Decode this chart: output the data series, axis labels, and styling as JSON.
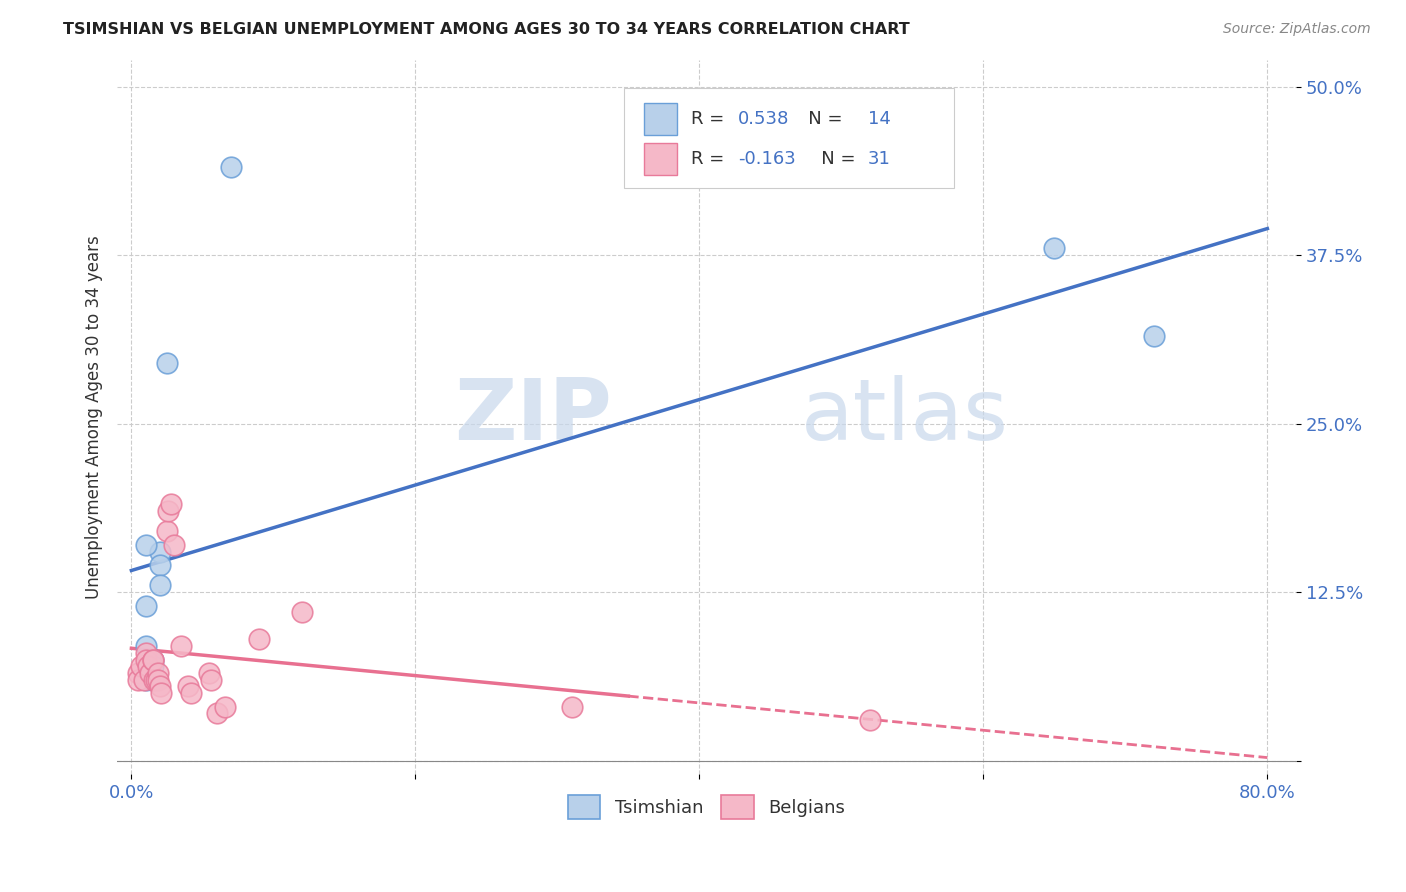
{
  "title": "TSIMSHIAN VS BELGIAN UNEMPLOYMENT AMONG AGES 30 TO 34 YEARS CORRELATION CHART",
  "source": "Source: ZipAtlas.com",
  "ylabel": "Unemployment Among Ages 30 to 34 years",
  "xlim": [
    -0.01,
    0.82
  ],
  "ylim": [
    -0.01,
    0.52
  ],
  "xticks": [
    0.0,
    0.2,
    0.4,
    0.6,
    0.8
  ],
  "xticklabels": [
    "0.0%",
    "",
    "",
    "",
    "80.0%"
  ],
  "yticks": [
    0.0,
    0.125,
    0.25,
    0.375,
    0.5
  ],
  "yticklabels": [
    "",
    "12.5%",
    "25.0%",
    "37.5%",
    "50.0%"
  ],
  "tsimshian_color": "#b8d0ea",
  "belgian_color": "#f5b8c8",
  "tsimshian_edge_color": "#6a9fd8",
  "belgian_edge_color": "#e87a9a",
  "tsimshian_line_color": "#4472c4",
  "belgian_line_color": "#e87090",
  "r_tsimshian": "0.538",
  "n_tsimshian": "14",
  "r_belgian": "-0.163",
  "n_belgian": "31",
  "legend_tsimshian": "Tsimshian",
  "legend_belgian": "Belgians",
  "watermark_part1": "ZIP",
  "watermark_part2": "atlas",
  "tsimshian_x": [
    0.02,
    0.02,
    0.02,
    0.015,
    0.015,
    0.015,
    0.01,
    0.01,
    0.01,
    0.01,
    0.025,
    0.07,
    0.65,
    0.72
  ],
  "tsimshian_y": [
    0.155,
    0.145,
    0.13,
    0.075,
    0.07,
    0.06,
    0.06,
    0.085,
    0.115,
    0.16,
    0.295,
    0.44,
    0.38,
    0.315
  ],
  "belgian_x": [
    0.005,
    0.005,
    0.007,
    0.009,
    0.01,
    0.01,
    0.012,
    0.013,
    0.015,
    0.015,
    0.016,
    0.017,
    0.019,
    0.019,
    0.02,
    0.021,
    0.025,
    0.026,
    0.028,
    0.03,
    0.035,
    0.04,
    0.042,
    0.055,
    0.056,
    0.06,
    0.066,
    0.09,
    0.12,
    0.31,
    0.52
  ],
  "belgian_y": [
    0.065,
    0.06,
    0.07,
    0.06,
    0.08,
    0.075,
    0.07,
    0.065,
    0.075,
    0.075,
    0.06,
    0.06,
    0.065,
    0.06,
    0.055,
    0.05,
    0.17,
    0.185,
    0.19,
    0.16,
    0.085,
    0.055,
    0.05,
    0.065,
    0.06,
    0.035,
    0.04,
    0.09,
    0.11,
    0.04,
    0.03
  ],
  "background_color": "#ffffff",
  "grid_color": "#cccccc",
  "legend_text_color": "#4472c4",
  "legend_label_color": "#333333"
}
